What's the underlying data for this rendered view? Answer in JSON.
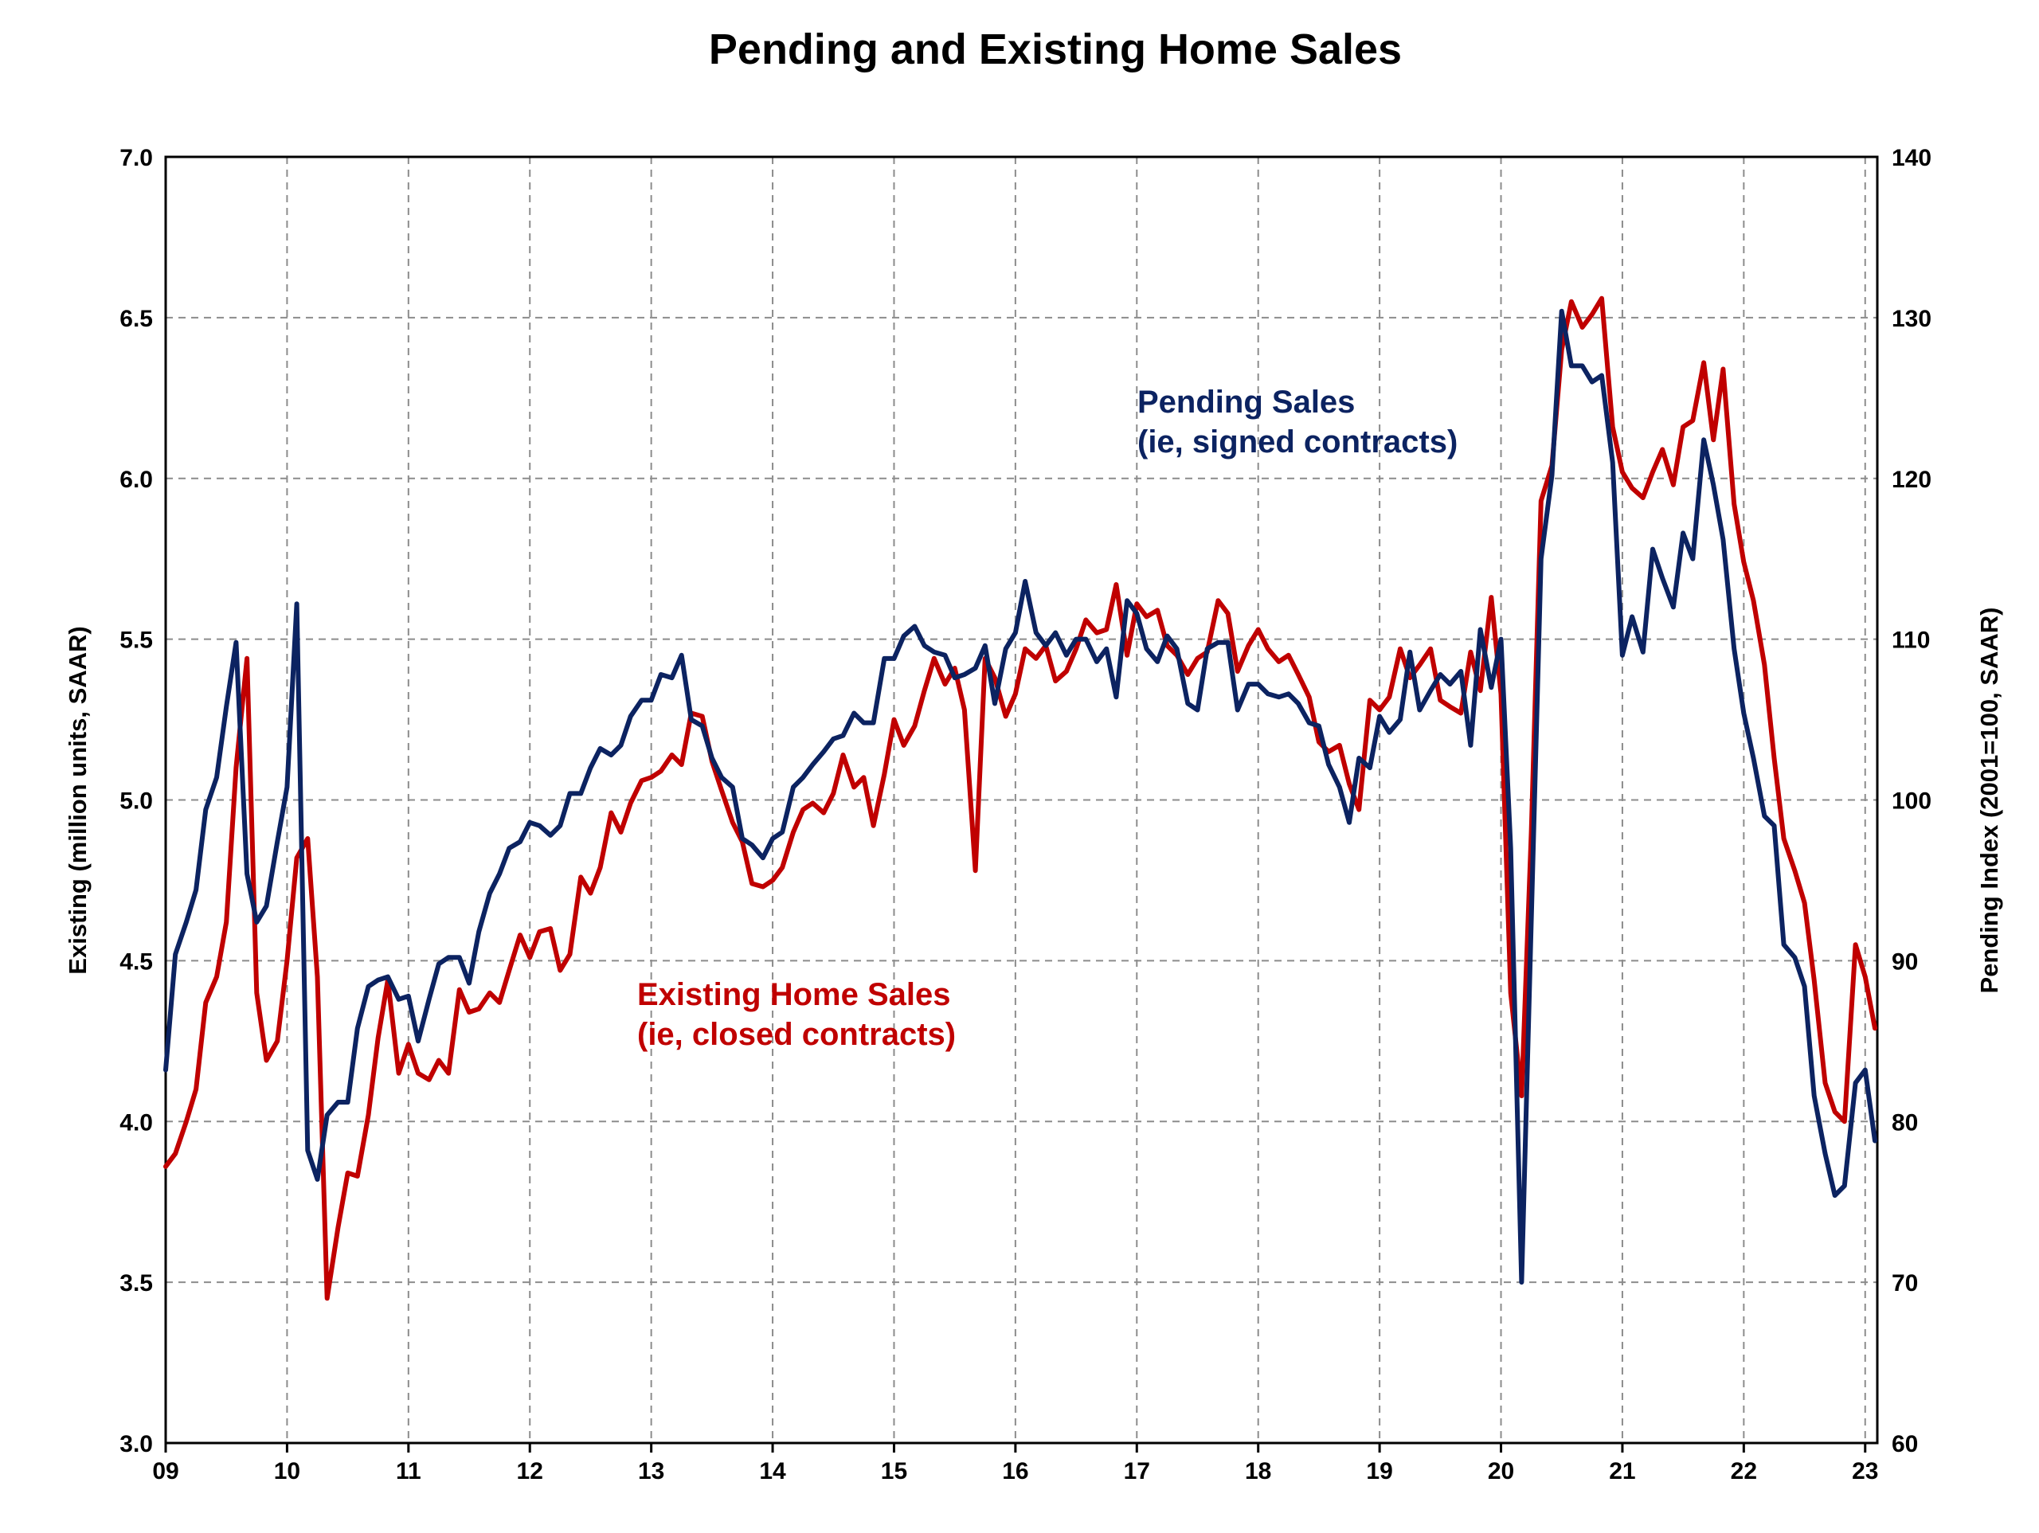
{
  "chart_data": {
    "type": "line",
    "title": "Pending and Existing Home Sales",
    "ylabel_left": "Existing (million units, SAAR)",
    "ylabel_right": "Pending Index (2001=100, SAAR)",
    "ylim_left": [
      3.0,
      7.0
    ],
    "ylim_right": [
      60,
      140
    ],
    "yticks_left": [
      "3.0",
      "3.5",
      "4.0",
      "4.5",
      "5.0",
      "5.5",
      "6.0",
      "6.5",
      "7.0"
    ],
    "yticks_right": [
      "60",
      "70",
      "80",
      "90",
      "100",
      "110",
      "120",
      "130",
      "140"
    ],
    "xlim": [
      2009.0,
      2023.1
    ],
    "xticks": [
      "09",
      "10",
      "11",
      "12",
      "13",
      "14",
      "15",
      "16",
      "17",
      "18",
      "19",
      "20",
      "21",
      "22",
      "23"
    ],
    "grid": true,
    "series": [
      {
        "name": "Existing Home Sales",
        "axis": "left",
        "color": "#c00000",
        "x": [
          2009.0,
          2009.08,
          2009.17,
          2009.25,
          2009.33,
          2009.42,
          2009.5,
          2009.58,
          2009.67,
          2009.75,
          2009.83,
          2009.92,
          2010.0,
          2010.08,
          2010.17,
          2010.25,
          2010.33,
          2010.42,
          2010.5,
          2010.58,
          2010.67,
          2010.75,
          2010.83,
          2010.92,
          2011.0,
          2011.08,
          2011.17,
          2011.25,
          2011.33,
          2011.42,
          2011.5,
          2011.58,
          2011.67,
          2011.75,
          2011.83,
          2011.92,
          2012.0,
          2012.08,
          2012.17,
          2012.25,
          2012.33,
          2012.42,
          2012.5,
          2012.58,
          2012.67,
          2012.75,
          2012.83,
          2012.92,
          2013.0,
          2013.08,
          2013.17,
          2013.25,
          2013.33,
          2013.42,
          2013.5,
          2013.58,
          2013.67,
          2013.75,
          2013.83,
          2013.92,
          2014.0,
          2014.08,
          2014.17,
          2014.25,
          2014.33,
          2014.42,
          2014.5,
          2014.58,
          2014.67,
          2014.75,
          2014.83,
          2014.92,
          2015.0,
          2015.08,
          2015.17,
          2015.25,
          2015.33,
          2015.42,
          2015.5,
          2015.58,
          2015.67,
          2015.75,
          2015.83,
          2015.92,
          2016.0,
          2016.08,
          2016.17,
          2016.25,
          2016.33,
          2016.42,
          2016.5,
          2016.58,
          2016.67,
          2016.75,
          2016.83,
          2016.92,
          2017.0,
          2017.08,
          2017.17,
          2017.25,
          2017.33,
          2017.42,
          2017.5,
          2017.58,
          2017.67,
          2017.75,
          2017.83,
          2017.92,
          2018.0,
          2018.08,
          2018.17,
          2018.25,
          2018.33,
          2018.42,
          2018.5,
          2018.58,
          2018.67,
          2018.75,
          2018.83,
          2018.92,
          2019.0,
          2019.08,
          2019.17,
          2019.25,
          2019.33,
          2019.42,
          2019.5,
          2019.58,
          2019.67,
          2019.75,
          2019.83,
          2019.92,
          2020.0,
          2020.08,
          2020.17,
          2020.25,
          2020.33,
          2020.42,
          2020.5,
          2020.58,
          2020.67,
          2020.75,
          2020.83,
          2020.92,
          2021.0,
          2021.08,
          2021.17,
          2021.25,
          2021.33,
          2021.42,
          2021.5,
          2021.58,
          2021.67,
          2021.75,
          2021.83,
          2021.92,
          2022.0,
          2022.08,
          2022.17,
          2022.25,
          2022.33,
          2022.42,
          2022.5,
          2022.58,
          2022.67,
          2022.75,
          2022.83,
          2022.92,
          2023.0,
          2023.08
        ],
        "values": [
          3.86,
          3.9,
          4.0,
          4.1,
          4.37,
          4.45,
          4.62,
          5.1,
          5.44,
          4.4,
          4.19,
          4.25,
          4.5,
          4.82,
          4.88,
          4.45,
          3.45,
          3.67,
          3.84,
          3.83,
          4.02,
          4.26,
          4.44,
          4.15,
          4.24,
          4.15,
          4.13,
          4.19,
          4.15,
          4.41,
          4.34,
          4.35,
          4.4,
          4.37,
          4.47,
          4.58,
          4.51,
          4.59,
          4.6,
          4.47,
          4.52,
          4.76,
          4.71,
          4.79,
          4.96,
          4.9,
          4.99,
          5.06,
          5.07,
          5.09,
          5.14,
          5.11,
          5.27,
          5.26,
          5.12,
          5.03,
          4.93,
          4.87,
          4.74,
          4.73,
          4.75,
          4.79,
          4.9,
          4.97,
          4.99,
          4.96,
          5.02,
          5.14,
          5.04,
          5.07,
          4.92,
          5.08,
          5.25,
          5.17,
          5.23,
          5.34,
          5.44,
          5.36,
          5.41,
          5.28,
          4.78,
          5.44,
          5.38,
          5.26,
          5.33,
          5.47,
          5.44,
          5.48,
          5.37,
          5.4,
          5.47,
          5.56,
          5.52,
          5.53,
          5.67,
          5.45,
          5.61,
          5.57,
          5.59,
          5.48,
          5.45,
          5.39,
          5.44,
          5.46,
          5.62,
          5.58,
          5.4,
          5.48,
          5.53,
          5.47,
          5.43,
          5.45,
          5.39,
          5.32,
          5.18,
          5.15,
          5.17,
          5.05,
          4.97,
          5.31,
          5.28,
          5.32,
          5.47,
          5.38,
          5.42,
          5.47,
          5.31,
          5.29,
          5.27,
          5.46,
          5.34,
          5.63,
          5.33,
          4.4,
          4.08,
          4.9,
          5.93,
          6.04,
          6.4,
          6.55,
          6.47,
          6.51,
          6.56,
          6.16,
          6.02,
          5.97,
          5.94,
          6.02,
          6.09,
          5.98,
          6.16,
          6.18,
          6.36,
          6.12,
          6.34,
          5.92,
          5.74,
          5.62,
          5.42,
          5.13,
          4.88,
          4.78,
          4.68,
          4.44,
          4.12,
          4.03,
          4.0,
          4.55,
          4.45,
          4.29
        ]
      },
      {
        "name": "Pending Sales",
        "axis": "right",
        "color": "#0c2361",
        "x": [
          2009.0,
          2009.08,
          2009.17,
          2009.25,
          2009.33,
          2009.42,
          2009.5,
          2009.58,
          2009.67,
          2009.75,
          2009.83,
          2009.92,
          2010.0,
          2010.08,
          2010.17,
          2010.25,
          2010.33,
          2010.42,
          2010.5,
          2010.58,
          2010.67,
          2010.75,
          2010.83,
          2010.92,
          2011.0,
          2011.08,
          2011.17,
          2011.25,
          2011.33,
          2011.42,
          2011.5,
          2011.58,
          2011.67,
          2011.75,
          2011.83,
          2011.92,
          2012.0,
          2012.08,
          2012.17,
          2012.25,
          2012.33,
          2012.42,
          2012.5,
          2012.58,
          2012.67,
          2012.75,
          2012.83,
          2012.92,
          2013.0,
          2013.08,
          2013.17,
          2013.25,
          2013.33,
          2013.42,
          2013.5,
          2013.58,
          2013.67,
          2013.75,
          2013.83,
          2013.92,
          2014.0,
          2014.08,
          2014.17,
          2014.25,
          2014.33,
          2014.42,
          2014.5,
          2014.58,
          2014.67,
          2014.75,
          2014.83,
          2014.92,
          2015.0,
          2015.08,
          2015.17,
          2015.25,
          2015.33,
          2015.42,
          2015.5,
          2015.58,
          2015.67,
          2015.75,
          2015.83,
          2015.92,
          2016.0,
          2016.08,
          2016.17,
          2016.25,
          2016.33,
          2016.42,
          2016.5,
          2016.58,
          2016.67,
          2016.75,
          2016.83,
          2016.92,
          2017.0,
          2017.08,
          2017.17,
          2017.25,
          2017.33,
          2017.42,
          2017.5,
          2017.58,
          2017.67,
          2017.75,
          2017.83,
          2017.92,
          2018.0,
          2018.08,
          2018.17,
          2018.25,
          2018.33,
          2018.42,
          2018.5,
          2018.58,
          2018.67,
          2018.75,
          2018.83,
          2018.92,
          2019.0,
          2019.08,
          2019.17,
          2019.25,
          2019.33,
          2019.42,
          2019.5,
          2019.58,
          2019.67,
          2019.75,
          2019.83,
          2019.92,
          2020.0,
          2020.08,
          2020.17,
          2020.25,
          2020.33,
          2020.42,
          2020.5,
          2020.58,
          2020.67,
          2020.75,
          2020.83,
          2020.92,
          2021.0,
          2021.08,
          2021.17,
          2021.25,
          2021.33,
          2021.42,
          2021.5,
          2021.58,
          2021.67,
          2021.75,
          2021.83,
          2021.92,
          2022.0,
          2022.08,
          2022.17,
          2022.25,
          2022.33,
          2022.42,
          2022.5,
          2022.58,
          2022.67,
          2022.75,
          2022.83,
          2022.92,
          2023.0,
          2023.08
        ],
        "values": [
          83.2,
          90.4,
          92.4,
          94.4,
          99.4,
          101.4,
          105.8,
          109.8,
          95.4,
          92.4,
          93.4,
          97.4,
          100.8,
          112.2,
          78.2,
          76.4,
          80.4,
          81.2,
          81.2,
          85.8,
          88.4,
          88.8,
          89.0,
          87.6,
          87.8,
          85.0,
          87.6,
          89.8,
          90.2,
          90.2,
          88.6,
          91.8,
          94.2,
          95.4,
          97.0,
          97.4,
          98.6,
          98.4,
          97.8,
          98.4,
          100.4,
          100.4,
          102.0,
          103.2,
          102.8,
          103.4,
          105.2,
          106.2,
          106.2,
          107.8,
          107.6,
          109.0,
          105.0,
          104.6,
          102.6,
          101.4,
          100.8,
          97.6,
          97.2,
          96.4,
          97.6,
          98.0,
          100.8,
          101.4,
          102.2,
          103.0,
          103.8,
          104.0,
          105.4,
          104.8,
          104.8,
          108.8,
          108.8,
          110.2,
          110.8,
          109.6,
          109.2,
          109.0,
          107.6,
          107.8,
          108.2,
          109.6,
          106.0,
          109.4,
          110.4,
          113.6,
          110.4,
          109.6,
          110.4,
          109.0,
          110.0,
          110.0,
          108.6,
          109.4,
          106.4,
          112.4,
          111.6,
          109.4,
          108.6,
          110.2,
          109.4,
          106.0,
          105.6,
          109.4,
          109.8,
          109.8,
          105.6,
          107.2,
          107.2,
          106.6,
          106.4,
          106.6,
          106.0,
          104.8,
          104.6,
          102.2,
          100.8,
          98.6,
          102.6,
          102.0,
          105.2,
          104.2,
          105.0,
          109.2,
          105.6,
          106.8,
          107.8,
          107.2,
          108.0,
          103.4,
          110.6,
          107.0,
          110.0,
          97.0,
          70.0,
          92.6,
          115.0,
          120.2,
          130.4,
          127.0,
          127.0,
          126.0,
          126.4,
          121.0,
          109.0,
          111.4,
          109.2,
          115.6,
          113.8,
          112.0,
          116.6,
          115.0,
          122.4,
          119.6,
          116.2,
          109.4,
          105.4,
          102.6,
          99.0,
          98.4,
          91.0,
          90.2,
          88.4,
          81.6,
          78.0,
          75.4,
          76.0,
          82.4,
          83.2,
          78.8
        ]
      }
    ],
    "annotations": [
      {
        "lines": [
          "Pending Sales",
          "(ie, signed contracts)"
        ],
        "series": "Pending Sales"
      },
      {
        "lines": [
          "Existing Home Sales",
          "(ie, closed contracts)"
        ],
        "series": "Existing Home Sales"
      }
    ]
  }
}
